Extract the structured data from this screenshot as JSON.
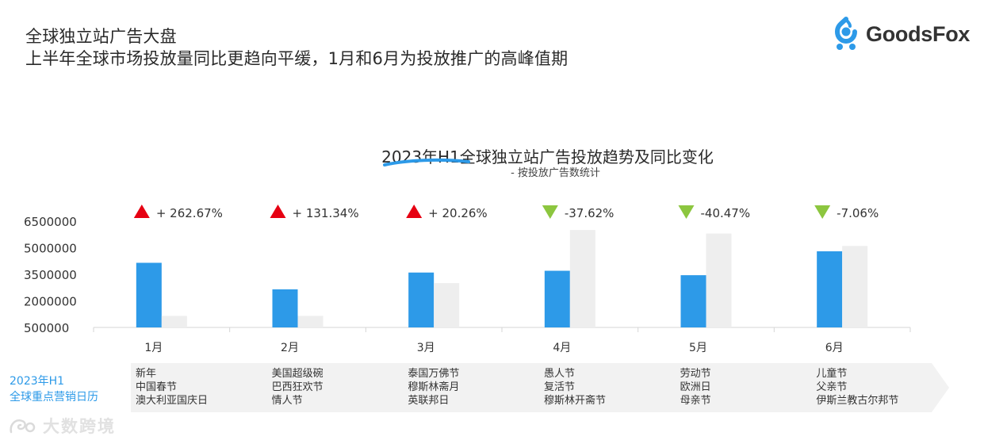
{
  "header": {
    "line1": "全球独立站广告大盘",
    "line2": "上半年全球市场投放量同比更趋向平缓，1月和6月为投放推广的高峰值期"
  },
  "logo": {
    "text": "GoodsFox",
    "icon": "fox-logo-icon",
    "color": "#2d9ae8"
  },
  "chart_data": {
    "type": "bar",
    "title": "2023年H1全球独立站广告投放趋势及同比变化",
    "subtitle": "- 按投放广告数统计",
    "categories": [
      "1月",
      "2月",
      "3月",
      "4月",
      "5月",
      "6月"
    ],
    "series": [
      {
        "values": [
          4150000,
          2650000,
          3600000,
          3700000,
          3450000,
          4800000
        ],
        "color": "#2d9ae8"
      },
      {
        "values": [
          1150000,
          1150000,
          3000000,
          6000000,
          5800000,
          5100000
        ],
        "color": "#eeeeee"
      }
    ],
    "yticks": [
      "6500000",
      "5000000",
      "3500000",
      "2000000",
      "500000"
    ],
    "ytick_values": [
      6500000,
      5000000,
      3500000,
      2000000,
      500000
    ],
    "ylim": [
      500000,
      6500000
    ],
    "changes": [
      {
        "label": "+ 262.67%",
        "direction": "up"
      },
      {
        "label": "+ 131.34%",
        "direction": "up"
      },
      {
        "label": "+ 20.26%",
        "direction": "up"
      },
      {
        "label": "-37.62%",
        "direction": "down"
      },
      {
        "label": "-40.47%",
        "direction": "down"
      },
      {
        "label": "-7.06%",
        "direction": "down"
      }
    ],
    "up_color": "#e60012",
    "down_color": "#8cc63f",
    "grid": false
  },
  "calendar": {
    "label_line1": "2023年H1",
    "label_line2": "全球重点营销日历",
    "months": [
      [
        "新年",
        "中国春节",
        "澳大利亚国庆日"
      ],
      [
        "美国超级碗",
        "巴西狂欢节",
        "情人节"
      ],
      [
        "泰国万佛节",
        "穆斯林斋月",
        "英联邦日"
      ],
      [
        "愚人节",
        "复活节",
        "穆斯林开斋节"
      ],
      [
        "劳动节",
        "欧洲日",
        "母亲节"
      ],
      [
        "儿童节",
        "父亲节",
        "伊斯兰教古尔邦节"
      ]
    ]
  },
  "watermark": {
    "text": "大数跨境",
    "icon": "watermark-logo-icon"
  }
}
